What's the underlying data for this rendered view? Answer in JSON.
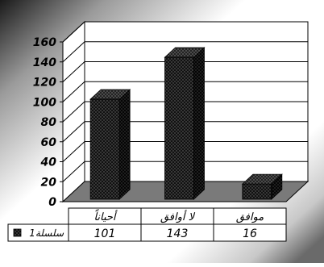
{
  "chart_data": {
    "type": "bar",
    "style": "3d-column",
    "categories": [
      "أحياناً",
      "لا أوافق",
      "موافق"
    ],
    "series": [
      {
        "name": "سلسلة1",
        "values": [
          101,
          143,
          16
        ]
      }
    ],
    "y_ticks": [
      "0",
      "20",
      "40",
      "60",
      "80",
      "100",
      "120",
      "140",
      "160"
    ],
    "ylim": [
      0,
      160
    ],
    "grid": true,
    "data_table": true,
    "legend": "data-table-left",
    "colors": {
      "bar": "#111111",
      "bar_dots": "#6a6a6a",
      "floor": "#7a7a7a",
      "grid": "#000000",
      "wall": "#ffffff"
    }
  }
}
